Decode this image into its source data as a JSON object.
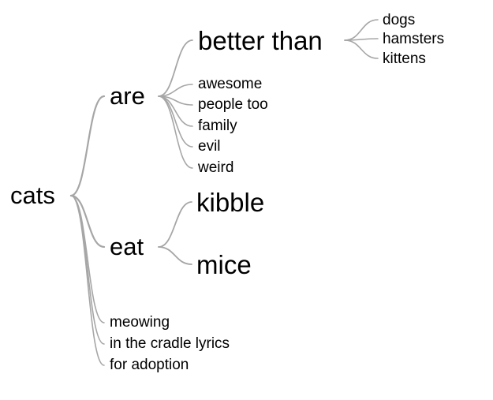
{
  "tree": {
    "root": {
      "label": "cats"
    },
    "are": {
      "label": "are"
    },
    "better_than": {
      "label": "better than"
    },
    "better_than_children": [
      "dogs",
      "hamsters",
      "kittens"
    ],
    "are_children": [
      "awesome",
      "people too",
      "family",
      "evil",
      "weird"
    ],
    "eat": {
      "label": "eat"
    },
    "eat_children": [
      "kibble",
      "mice"
    ],
    "root_children": [
      "meowing",
      "in the cradle lyrics",
      "for adoption"
    ],
    "edge_color": "#a6a6a6"
  }
}
